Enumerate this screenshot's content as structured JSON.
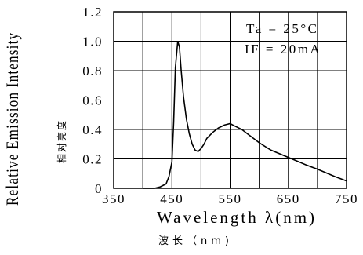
{
  "chart_data": {
    "type": "line",
    "ylabel": "Relative Emission Intensity",
    "ylabel_secondary": "相对亮度",
    "xlabel": "Wavelength λ(nm)",
    "xlabel_secondary": "波长（nm)",
    "xlim": [
      350,
      750
    ],
    "ylim": [
      0,
      1.2
    ],
    "x_ticks": [
      "350",
      "450",
      "550",
      "650",
      "750"
    ],
    "y_ticks": [
      "0",
      "0.2",
      "0.4",
      "0.6",
      "0.8",
      "1.0",
      "1.2"
    ],
    "grid": true,
    "annotations": [
      "Ta = 25°C",
      "IF = 20mA"
    ],
    "series": [
      {
        "x": [
          400,
          420,
          430,
          440,
          445,
          450,
          453,
          456,
          460,
          463,
          466,
          470,
          475,
          480,
          485,
          490,
          495,
          500,
          505,
          510,
          520,
          530,
          540,
          550,
          555,
          560,
          570,
          580,
          600,
          620,
          650,
          680,
          700,
          730,
          750
        ],
        "values": [
          0,
          0,
          0.01,
          0.03,
          0.08,
          0.18,
          0.45,
          0.82,
          1.0,
          0.96,
          0.8,
          0.62,
          0.47,
          0.37,
          0.3,
          0.26,
          0.25,
          0.27,
          0.3,
          0.34,
          0.38,
          0.41,
          0.43,
          0.44,
          0.43,
          0.42,
          0.4,
          0.37,
          0.31,
          0.26,
          0.21,
          0.16,
          0.13,
          0.08,
          0.05
        ]
      }
    ]
  }
}
